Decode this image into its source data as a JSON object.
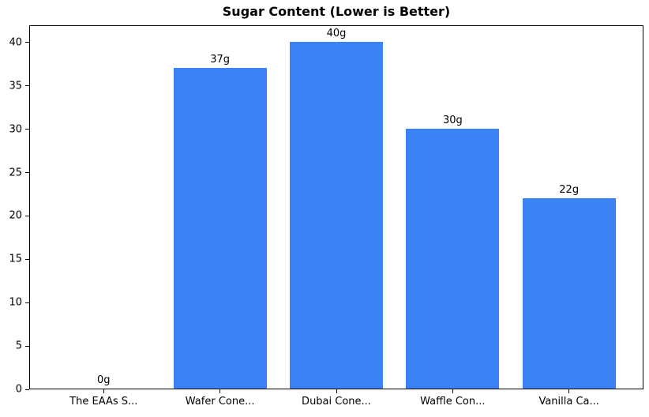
{
  "chart_data": {
    "type": "bar",
    "title": "Sugar Content (Lower is Better)",
    "categories": [
      "The EAAs S...",
      "Wafer Cone...",
      "Dubai Cone...",
      "Waffle Con...",
      "Vanilla Ca..."
    ],
    "values": [
      0,
      37,
      40,
      30,
      22
    ],
    "bar_labels": [
      "0g",
      "37g",
      "40g",
      "30g",
      "22g"
    ],
    "xlabel": "",
    "ylabel": "",
    "ylim": [
      0,
      42
    ],
    "yticks": [
      0,
      5,
      10,
      15,
      20,
      25,
      30,
      35,
      40
    ],
    "bar_color": "#3b82f6",
    "axis_color": "#000000",
    "background_color": "#ffffff",
    "grid": false,
    "legend": null
  }
}
